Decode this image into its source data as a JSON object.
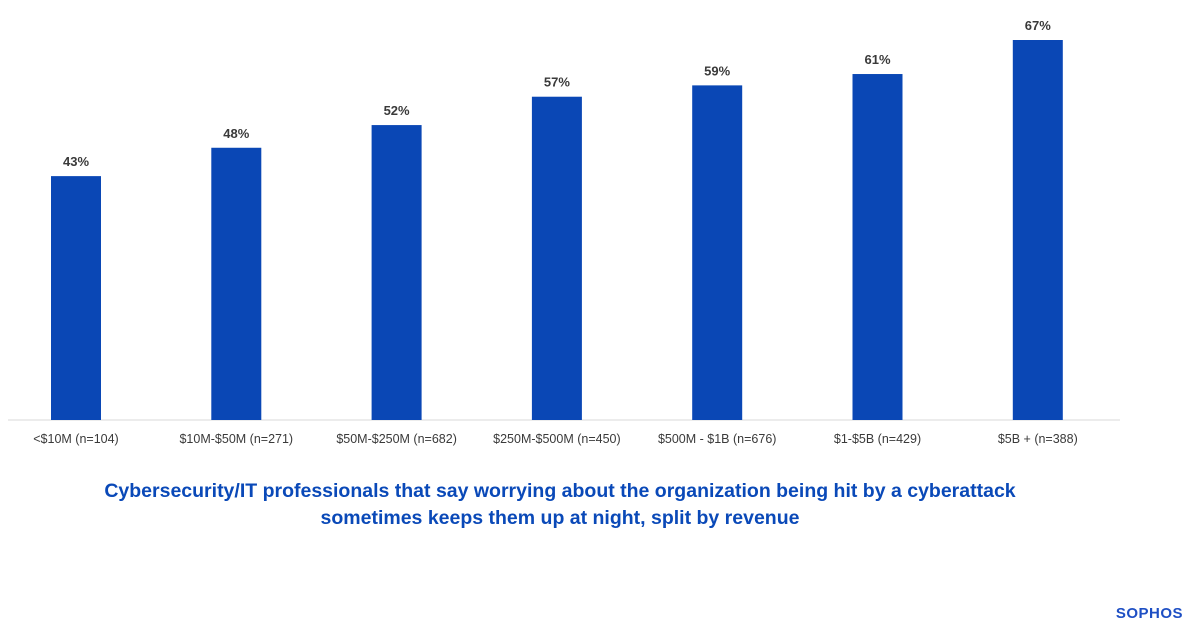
{
  "chart_data": {
    "type": "bar",
    "categories": [
      "<$10M (n=104)",
      "$10M-$50M (n=271)",
      "$50M-$250M (n=682)",
      "$250M-$500M (n=450)",
      "$500M - $1B (n=676)",
      "$1-$5B (n=429)",
      "$5B + (n=388)"
    ],
    "values": [
      43,
      48,
      52,
      57,
      59,
      61,
      67
    ],
    "value_labels": [
      "43%",
      "48%",
      "52%",
      "57%",
      "59%",
      "61%",
      "67%"
    ],
    "title": "",
    "xlabel": "",
    "ylabel": "",
    "ylim": [
      0,
      70
    ],
    "grid": false,
    "legend": "none",
    "bar_color": "#0a47b5"
  },
  "caption": {
    "line1": "Cybersecurity/IT professionals that say worrying about the organization being hit by a cyberattack",
    "line2": "sometimes keeps them up at night, split by revenue"
  },
  "brand": {
    "logo_text": "SOPHOS",
    "color": "#1e4fc4"
  }
}
